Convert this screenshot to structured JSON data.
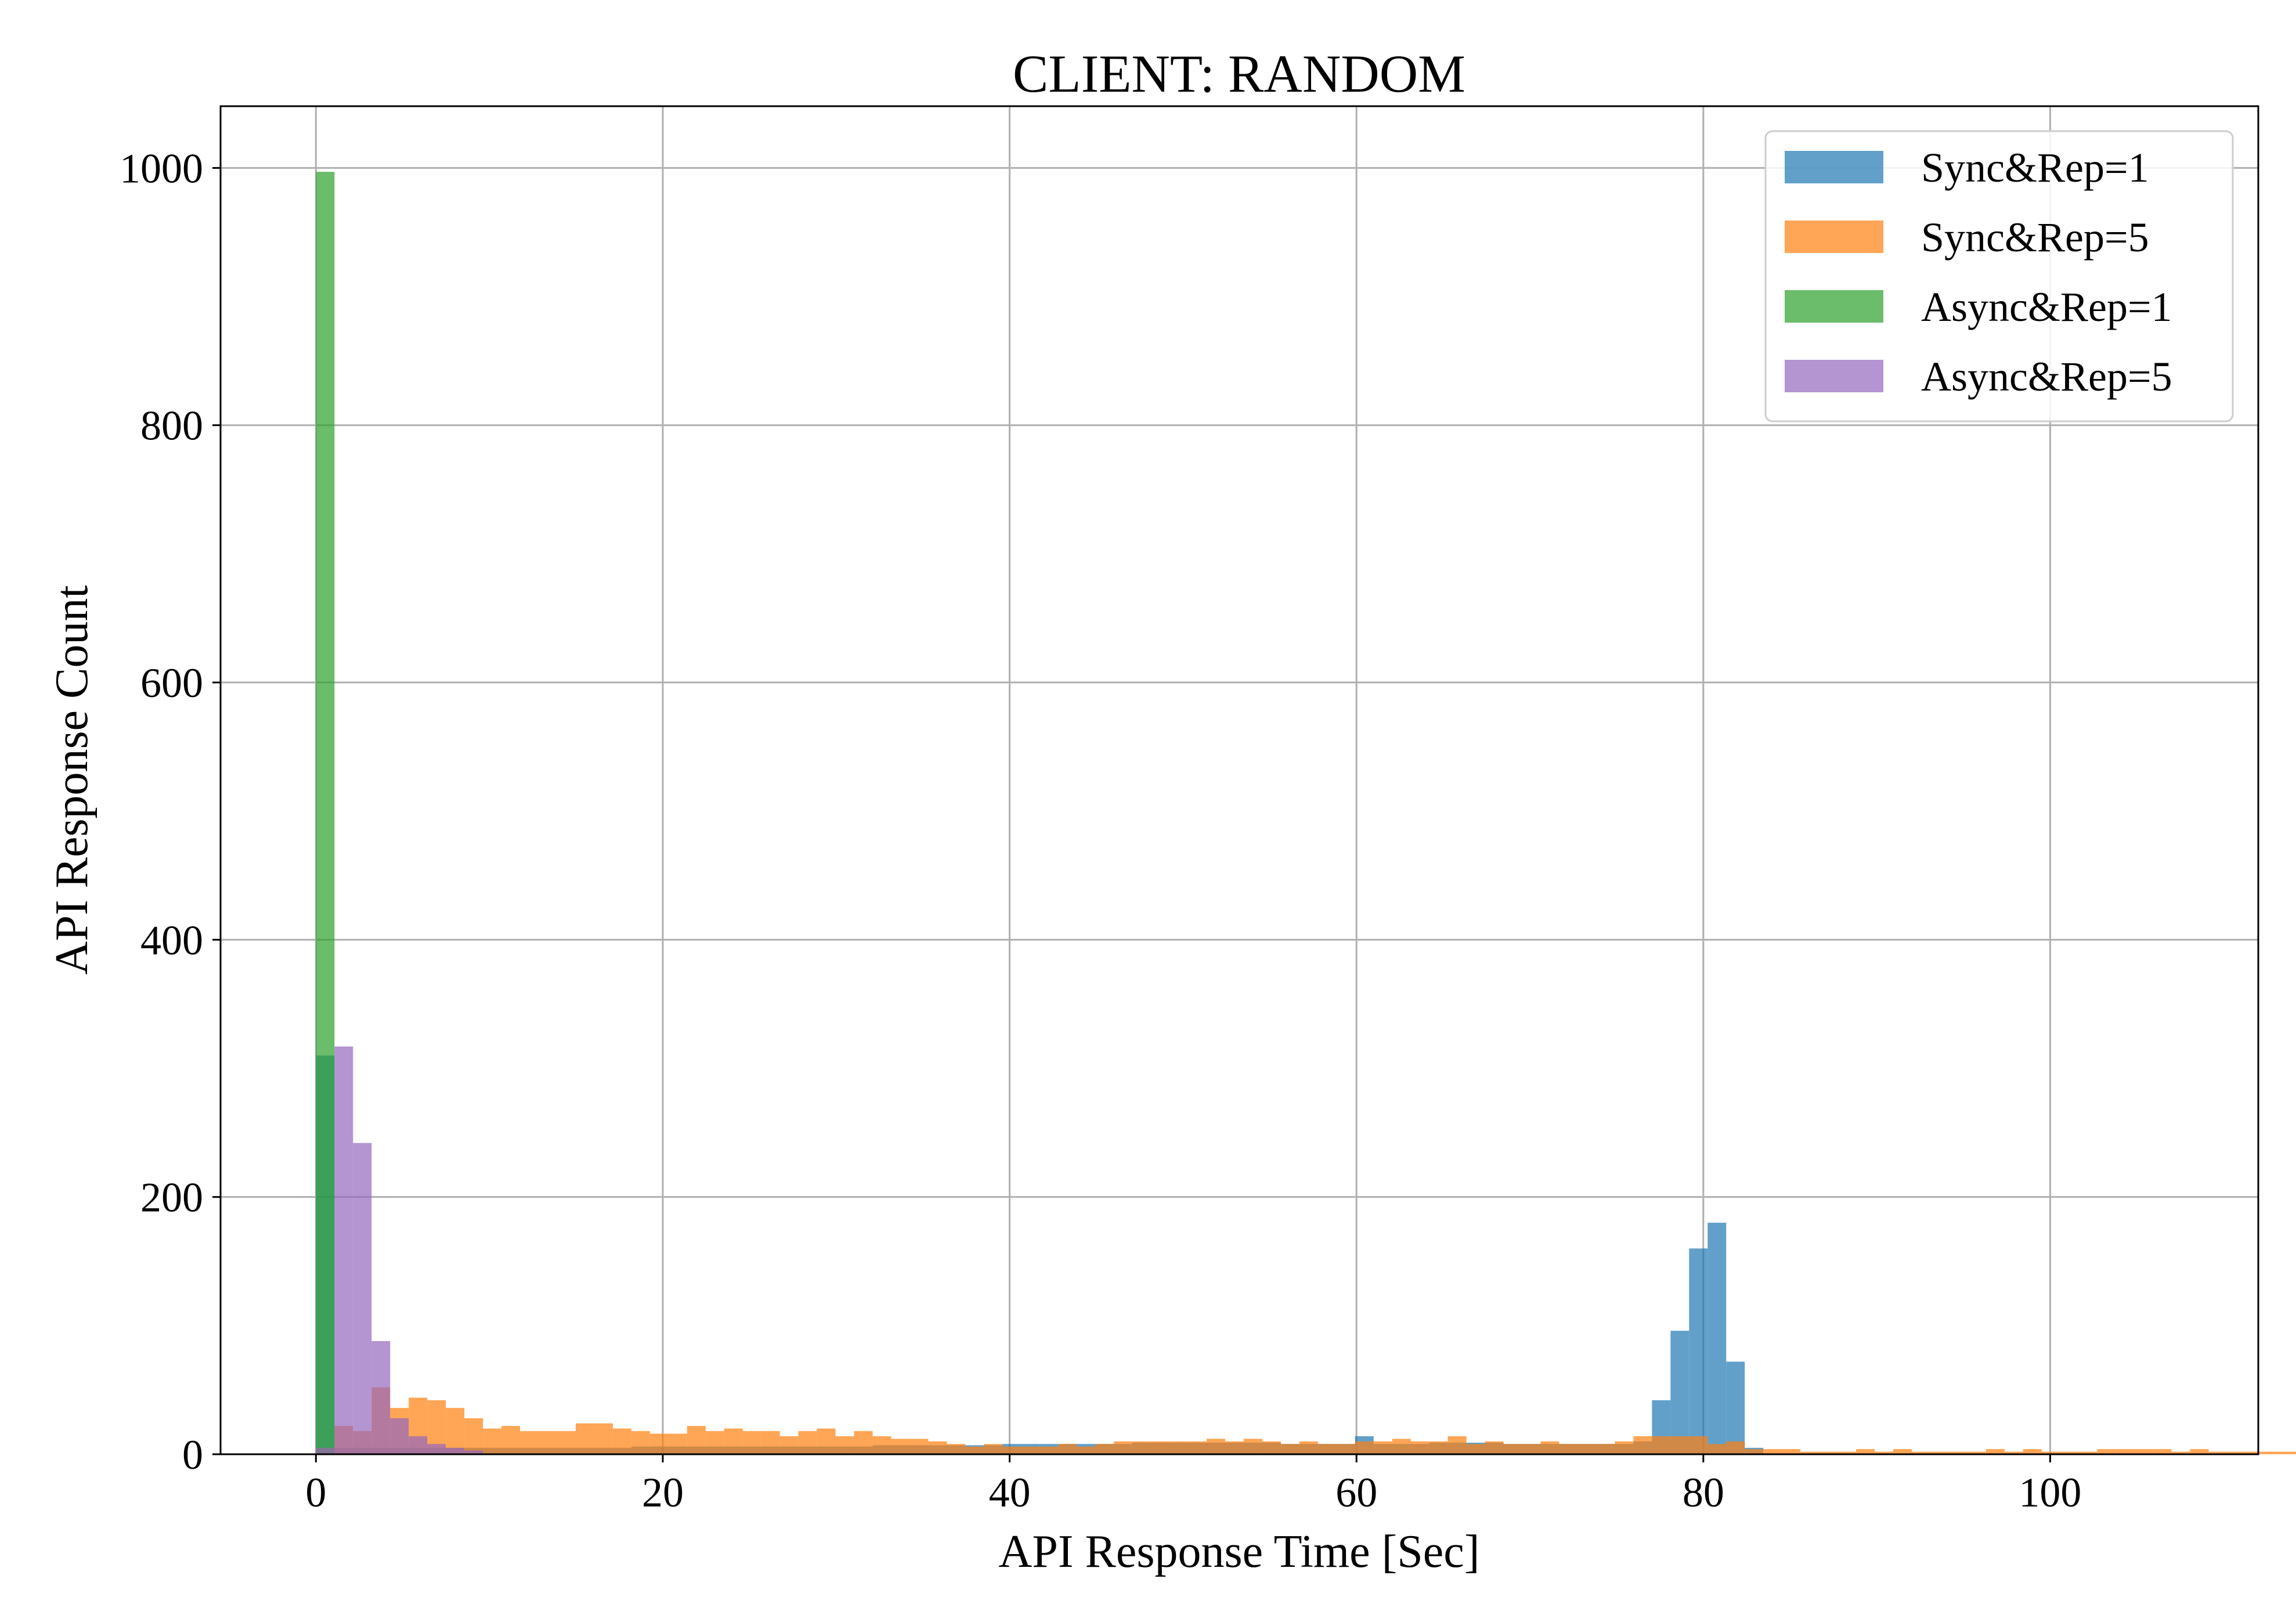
{
  "chart_data": {
    "type": "histogram",
    "title": "CLIENT: RANDOM",
    "xlabel": "API Response Time [Sec]",
    "ylabel": "API Response Count",
    "xlim": [
      -5.5,
      112
    ],
    "ylim": [
      0,
      1048
    ],
    "xticks": [
      0,
      20,
      40,
      60,
      80,
      100
    ],
    "yticks": [
      0,
      200,
      400,
      600,
      800,
      1000
    ],
    "grid": true,
    "legend_position": "top-right",
    "bin_width": 1.07,
    "series": [
      {
        "name": "Sync&Rep=1",
        "color": "#1f77b4",
        "opacity": 0.7,
        "bin_start": 0.0,
        "bin_width": 1.07,
        "values": [
          310,
          5,
          5,
          5,
          5,
          5,
          5,
          5,
          5,
          5,
          5,
          5,
          5,
          5,
          5,
          5,
          5,
          6,
          6,
          6,
          6,
          6,
          6,
          6,
          6,
          6,
          6,
          6,
          6,
          6,
          7,
          7,
          7,
          7,
          7,
          7,
          7,
          8,
          8,
          8,
          8,
          8,
          8,
          8,
          9,
          9,
          9,
          9,
          9,
          9,
          9,
          9,
          8,
          8,
          8,
          8,
          14,
          8,
          8,
          8,
          9,
          9,
          9,
          9,
          8,
          8,
          8,
          8,
          8,
          8,
          8,
          10,
          42,
          96,
          160,
          180,
          72,
          5
        ]
      },
      {
        "name": "Sync&Rep=5",
        "color": "#ff7f0e",
        "opacity": 0.7,
        "bin_start": 0.0,
        "bin_width": 1.07,
        "values": [
          5,
          22,
          18,
          52,
          36,
          44,
          42,
          36,
          28,
          20,
          22,
          18,
          18,
          18,
          24,
          24,
          20,
          18,
          16,
          16,
          22,
          18,
          20,
          18,
          18,
          14,
          18,
          20,
          14,
          18,
          14,
          12,
          12,
          10,
          8,
          6,
          8,
          6,
          6,
          6,
          8,
          6,
          8,
          10,
          10,
          10,
          10,
          10,
          12,
          10,
          12,
          10,
          8,
          10,
          8,
          8,
          10,
          10,
          12,
          10,
          10,
          14,
          8,
          10,
          8,
          8,
          10,
          8,
          8,
          8,
          10,
          14,
          14,
          14,
          14,
          8,
          10,
          4,
          4,
          4,
          2,
          2,
          2,
          4,
          2,
          4,
          2,
          2,
          2,
          2,
          4,
          2,
          4,
          2,
          2,
          2,
          4,
          4,
          4,
          4,
          2,
          4,
          2,
          2,
          2,
          2,
          2,
          2,
          4,
          2,
          2,
          2,
          2,
          2,
          2,
          2,
          2,
          2,
          4,
          2,
          2,
          2,
          2,
          2,
          2,
          2,
          2,
          2,
          2,
          4,
          2,
          2,
          2,
          2,
          2,
          2,
          2,
          2,
          2,
          2,
          4,
          2,
          2,
          2,
          2,
          2,
          4,
          2,
          2,
          2,
          2,
          2,
          2,
          2,
          2,
          2,
          2,
          2,
          2,
          2,
          2,
          2,
          2,
          2,
          4,
          2,
          2,
          2,
          2,
          2,
          2,
          2,
          2,
          2,
          2,
          2,
          2,
          2,
          2,
          2,
          2,
          4,
          2,
          2,
          2,
          2,
          2,
          2,
          2
        ]
      },
      {
        "name": "Async&Rep=1",
        "color": "#2ca02c",
        "opacity": 0.7,
        "bin_start": 0.0,
        "bin_width": 1.07,
        "values": [
          997
        ]
      },
      {
        "name": "Async&Rep=5",
        "color": "#9467bd",
        "opacity": 0.7,
        "bin_start": 0.0,
        "bin_width": 1.07,
        "values": [
          5,
          317,
          242,
          88,
          28,
          14,
          8,
          5,
          3
        ]
      }
    ]
  }
}
